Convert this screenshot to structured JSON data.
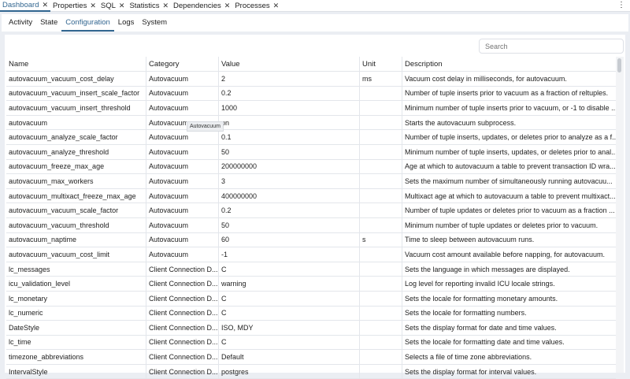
{
  "tabs": [
    {
      "label": "Dashboard",
      "active": true
    },
    {
      "label": "Properties"
    },
    {
      "label": "SQL"
    },
    {
      "label": "Statistics"
    },
    {
      "label": "Dependencies"
    },
    {
      "label": "Processes"
    }
  ],
  "subtabs": [
    {
      "label": "Activity"
    },
    {
      "label": "State"
    },
    {
      "label": "Configuration",
      "active": true
    },
    {
      "label": "Logs"
    },
    {
      "label": "System"
    }
  ],
  "search": {
    "placeholder": "Search",
    "value": ""
  },
  "columns": [
    "Name",
    "Category",
    "Value",
    "Unit",
    "Description"
  ],
  "rows": [
    [
      "autovacuum_vacuum_cost_delay",
      "Autovacuum",
      "2",
      "ms",
      "Vacuum cost delay in milliseconds, for autovacuum."
    ],
    [
      "autovacuum_vacuum_insert_scale_factor",
      "Autovacuum",
      "0.2",
      "",
      "Number of tuple inserts prior to vacuum as a fraction of reltuples."
    ],
    [
      "autovacuum_vacuum_insert_threshold",
      "Autovacuum",
      "1000",
      "",
      "Minimum number of tuple inserts prior to vacuum, or -1 to disable ..."
    ],
    [
      "autovacuum",
      "Autovacuum",
      "on",
      "",
      "Starts the autovacuum subprocess."
    ],
    [
      "autovacuum_analyze_scale_factor",
      "Autovacuum",
      "0.1",
      "",
      "Number of tuple inserts, updates, or deletes prior to analyze as a f..."
    ],
    [
      "autovacuum_analyze_threshold",
      "Autovacuum",
      "50",
      "",
      "Minimum number of tuple inserts, updates, or deletes prior to anal..."
    ],
    [
      "autovacuum_freeze_max_age",
      "Autovacuum",
      "200000000",
      "",
      "Age at which to autovacuum a table to prevent transaction ID wra..."
    ],
    [
      "autovacuum_max_workers",
      "Autovacuum",
      "3",
      "",
      "Sets the maximum number of simultaneously running autovacuu..."
    ],
    [
      "autovacuum_multixact_freeze_max_age",
      "Autovacuum",
      "400000000",
      "",
      "Multixact age at which to autovacuum a table to prevent multixact..."
    ],
    [
      "autovacuum_vacuum_scale_factor",
      "Autovacuum",
      "0.2",
      "",
      "Number of tuple updates or deletes prior to vacuum as a fraction ..."
    ],
    [
      "autovacuum_vacuum_threshold",
      "Autovacuum",
      "50",
      "",
      "Minimum number of tuple updates or deletes prior to vacuum."
    ],
    [
      "autovacuum_naptime",
      "Autovacuum",
      "60",
      "s",
      "Time to sleep between autovacuum runs."
    ],
    [
      "autovacuum_vacuum_cost_limit",
      "Autovacuum",
      "-1",
      "",
      "Vacuum cost amount available before napping, for autovacuum."
    ],
    [
      "lc_messages",
      "Client Connection D...",
      "C",
      "",
      "Sets the language in which messages are displayed."
    ],
    [
      "icu_validation_level",
      "Client Connection D...",
      "warning",
      "",
      "Log level for reporting invalid ICU locale strings."
    ],
    [
      "lc_monetary",
      "Client Connection D...",
      "C",
      "",
      "Sets the locale for formatting monetary amounts."
    ],
    [
      "lc_numeric",
      "Client Connection D...",
      "C",
      "",
      "Sets the locale for formatting numbers."
    ],
    [
      "DateStyle",
      "Client Connection D...",
      "ISO, MDY",
      "",
      "Sets the display format for date and time values."
    ],
    [
      "lc_time",
      "Client Connection D...",
      "C",
      "",
      "Sets the locale for formatting date and time values."
    ],
    [
      "timezone_abbreviations",
      "Client Connection D...",
      "Default",
      "",
      "Selects a file of time zone abbreviations."
    ],
    [
      "IntervalStyle",
      "Client Connection D...",
      "postgres",
      "",
      "Sets the display format for interval values."
    ]
  ],
  "tooltip": "Autovacuum"
}
